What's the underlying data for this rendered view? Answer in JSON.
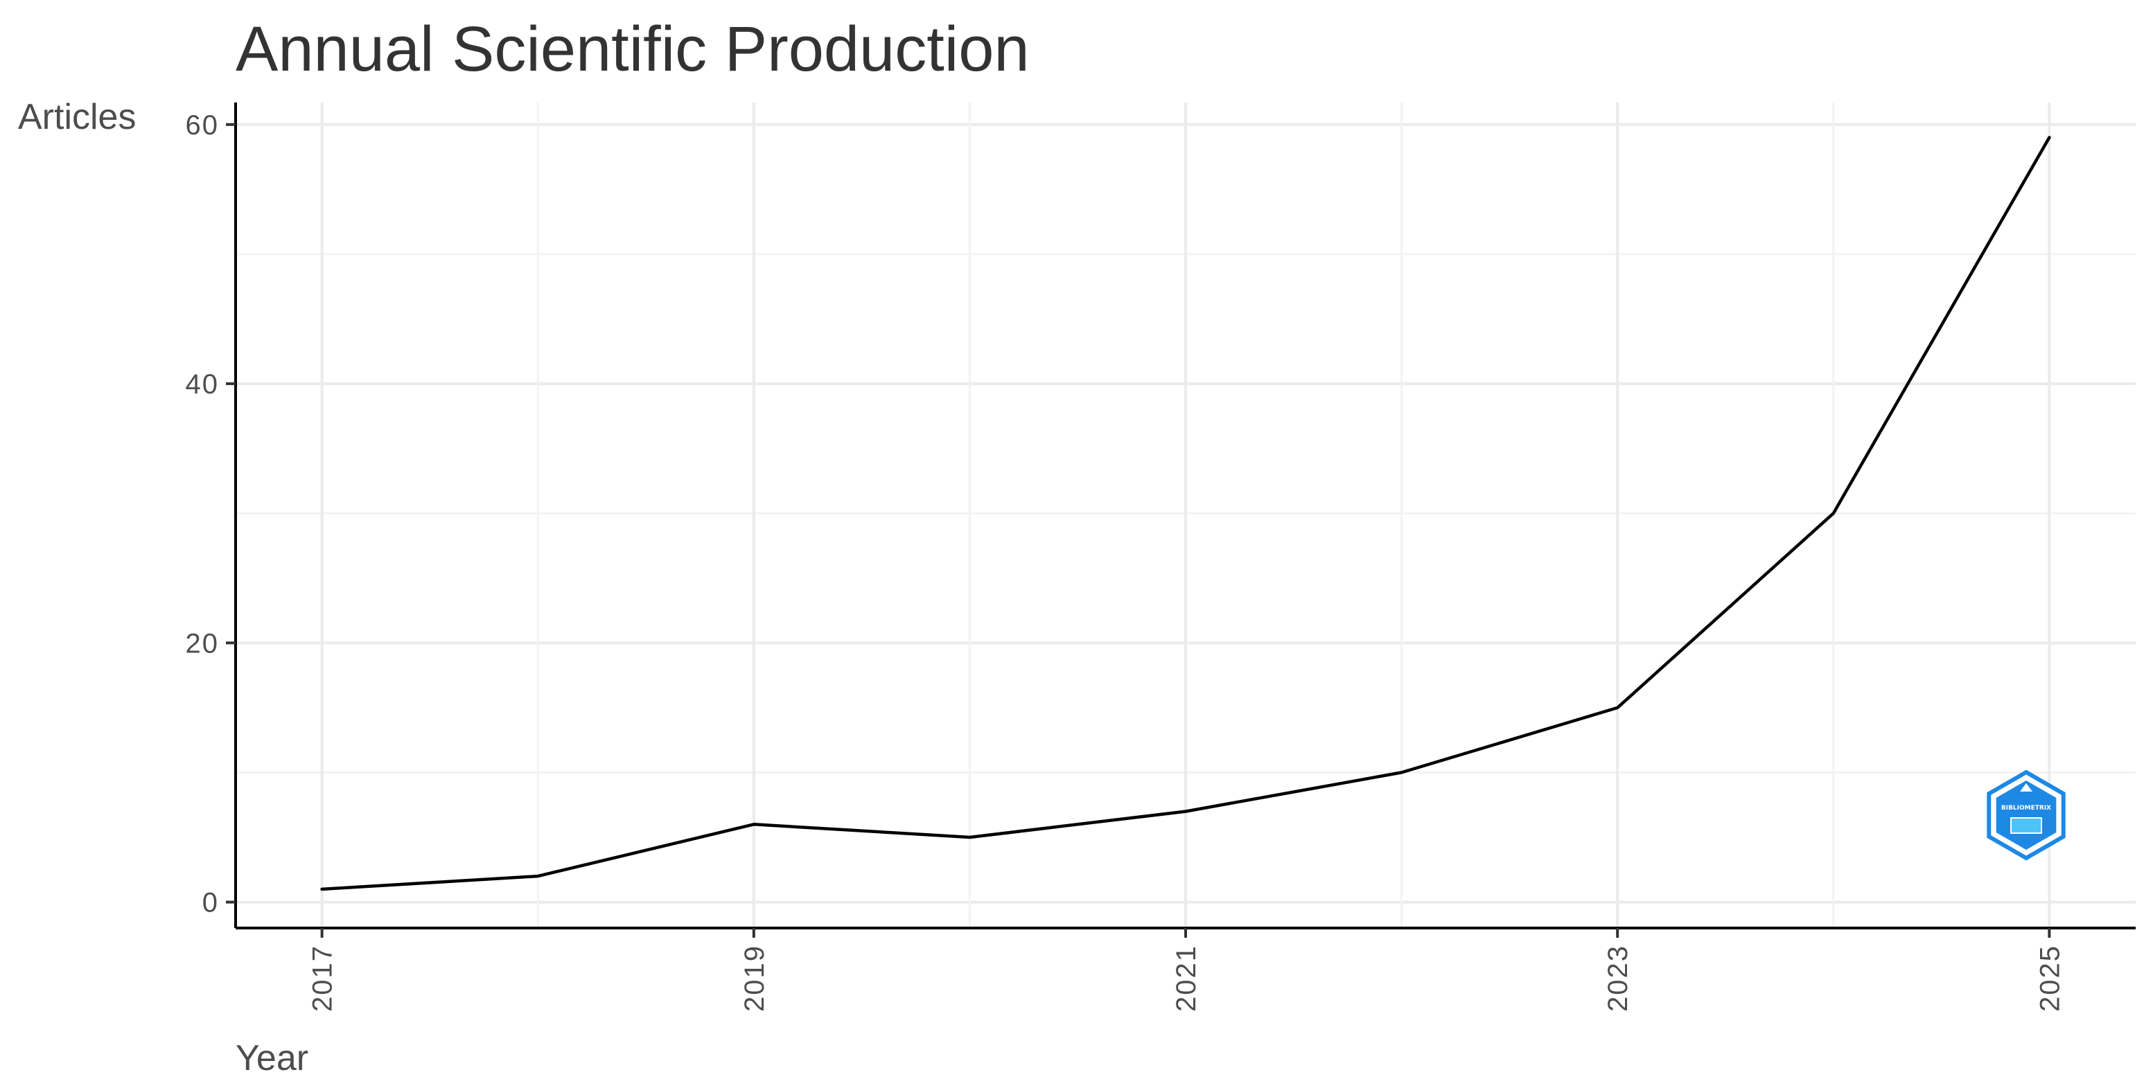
{
  "chart_data": {
    "type": "line",
    "title": "Annual Scientific Production",
    "xlabel": "Year",
    "ylabel": "Articles",
    "x": [
      2017,
      2018,
      2019,
      2020,
      2021,
      2022,
      2023,
      2024,
      2025
    ],
    "series": [
      {
        "values": [
          1,
          2,
          6,
          5,
          7,
          10,
          15,
          30,
          59
        ]
      }
    ],
    "xticks": [
      "2017",
      "2019",
      "2021",
      "2023",
      "2025"
    ],
    "yticks": [
      "0",
      "20",
      "40",
      "60"
    ],
    "xlim": [
      2016.6,
      2025.4
    ],
    "ylim": [
      -2,
      61.7
    ],
    "grid": true,
    "line_color": "#000000"
  },
  "logo": {
    "name": "bibliometrix-logo",
    "text": "BIBLIOMETRIX",
    "color": "#1e88e5"
  }
}
